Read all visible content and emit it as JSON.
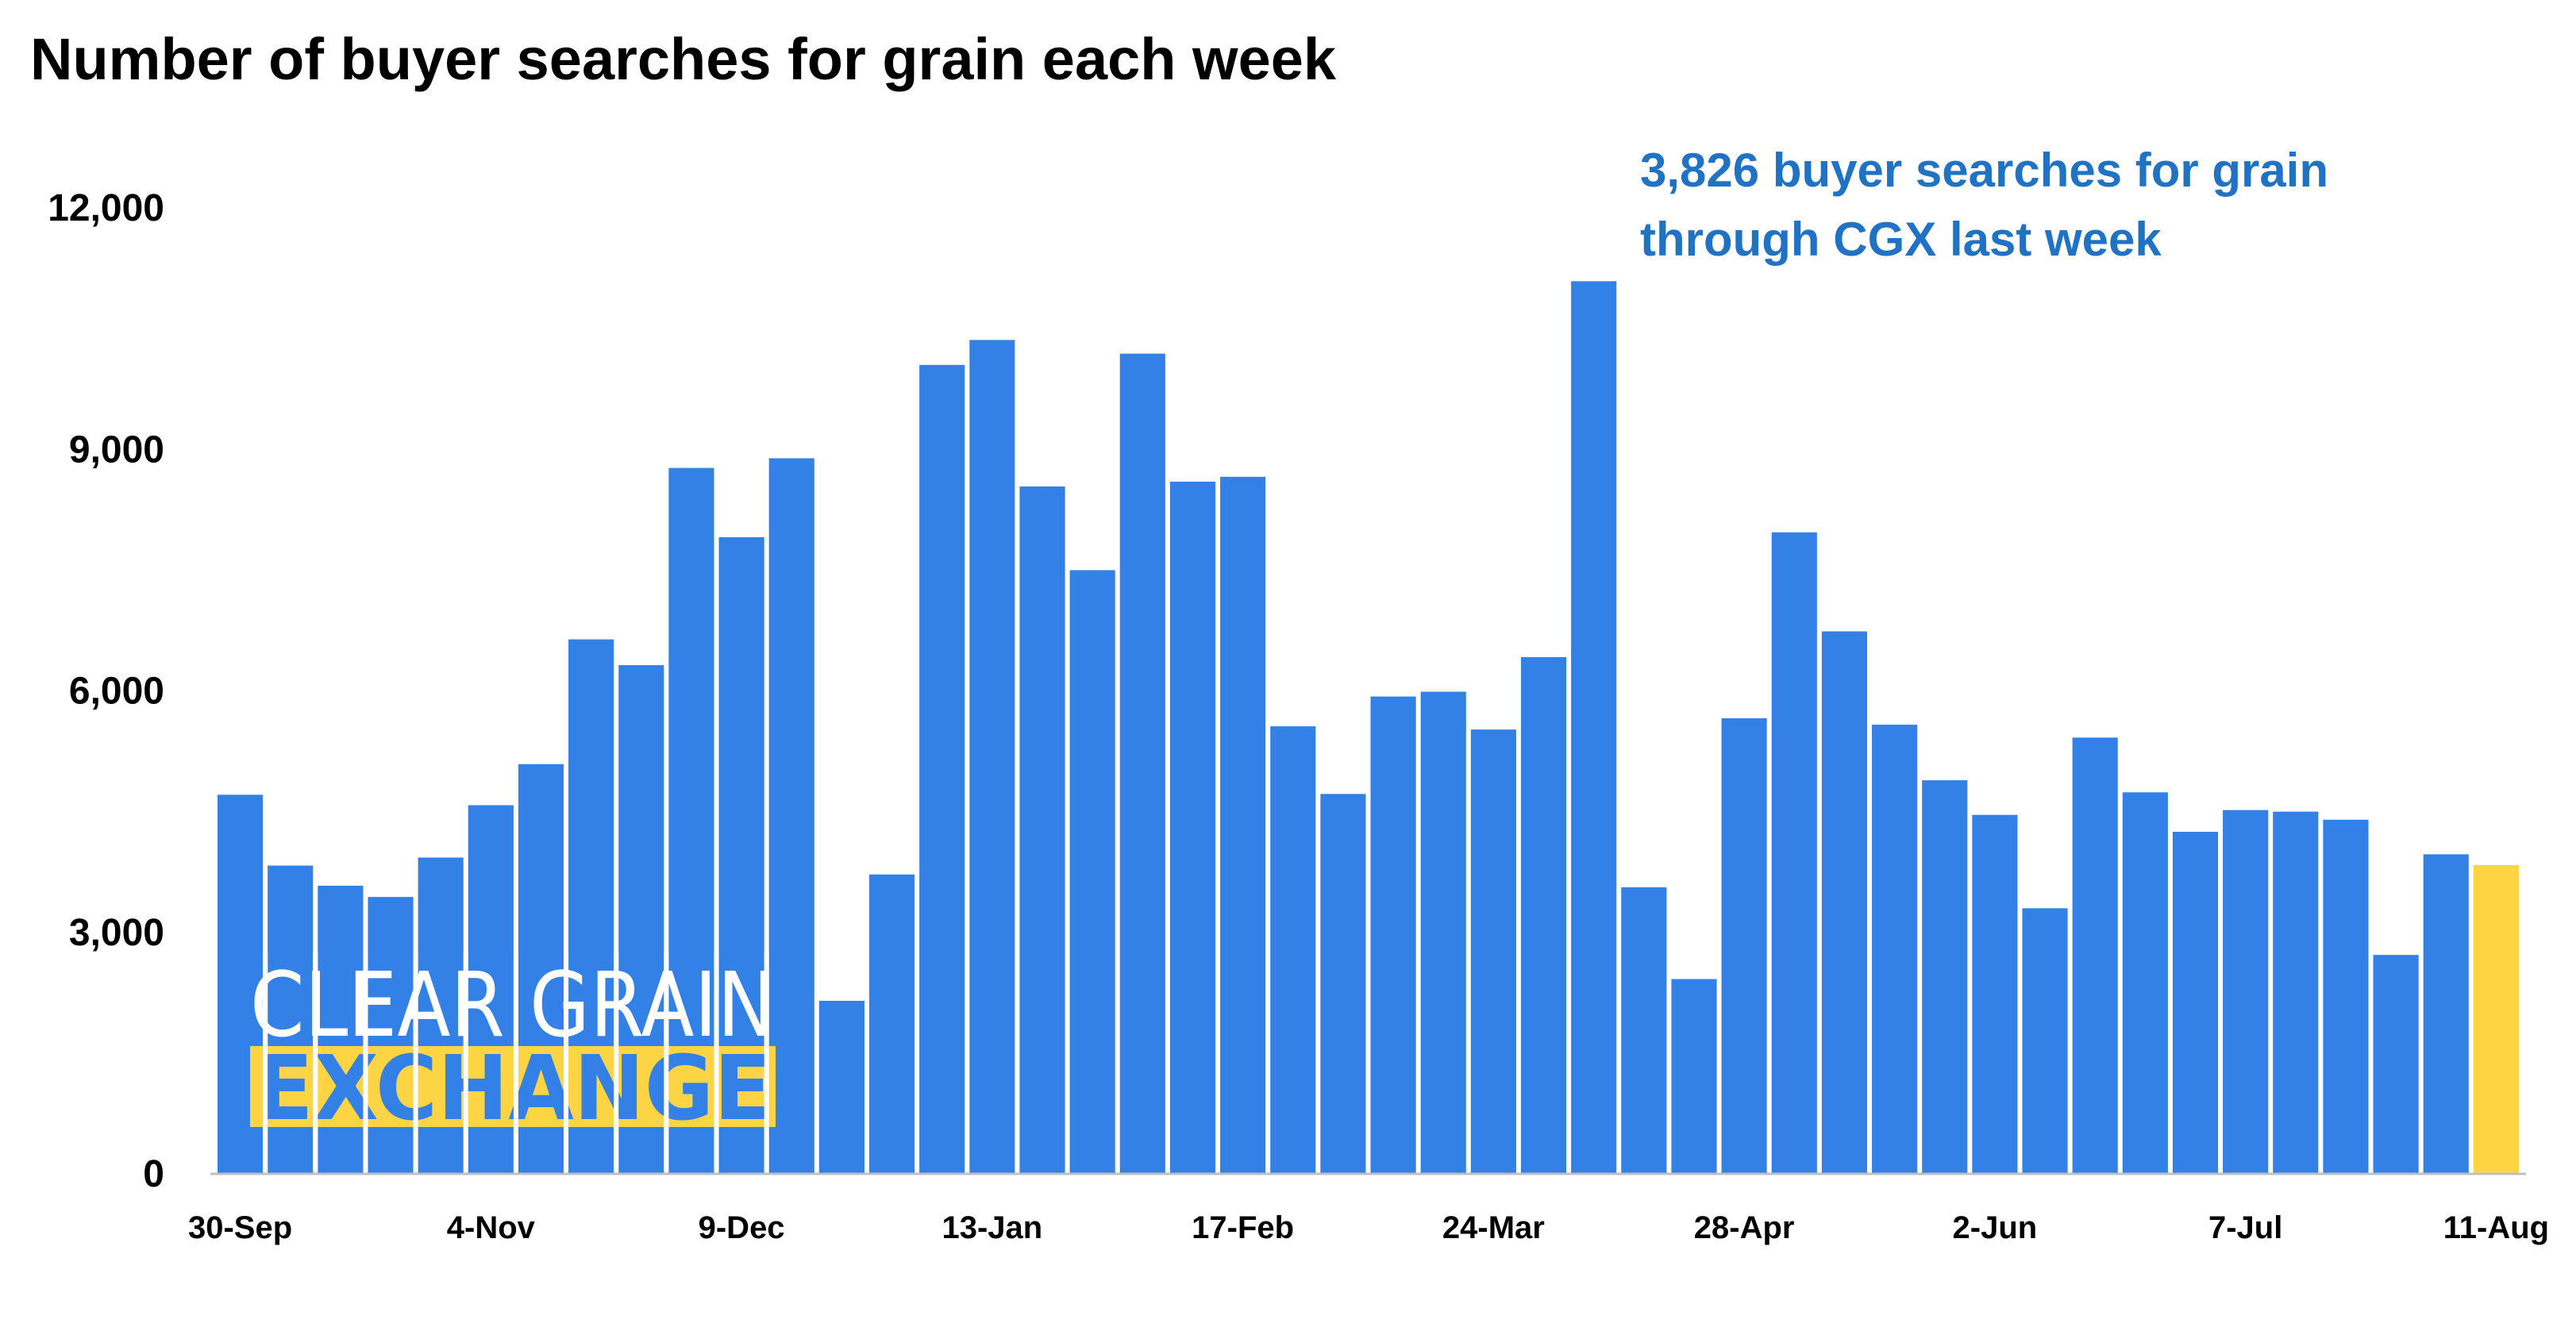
{
  "chart_data": {
    "type": "bar",
    "title": "Number of buyer searches for grain each week",
    "xlabel": "",
    "ylabel": "",
    "ylim": [
      0,
      12000
    ],
    "yticks": [
      0,
      3000,
      6000,
      9000,
      12000
    ],
    "ytick_labels": [
      "0",
      "3,000",
      "6,000",
      "9,000",
      "12,000"
    ],
    "grid": false,
    "x_tick_labels": [
      {
        "index": 0,
        "label": "30-Sep"
      },
      {
        "index": 5,
        "label": "4-Nov"
      },
      {
        "index": 10,
        "label": "9-Dec"
      },
      {
        "index": 15,
        "label": "13-Jan"
      },
      {
        "index": 20,
        "label": "17-Feb"
      },
      {
        "index": 25,
        "label": "24-Mar"
      },
      {
        "index": 30,
        "label": "28-Apr"
      },
      {
        "index": 35,
        "label": "2-Jun"
      },
      {
        "index": 40,
        "label": "7-Jul"
      },
      {
        "index": 45,
        "label": "11-Aug"
      }
    ],
    "values": [
      4700,
      3820,
      3570,
      3430,
      3920,
      4570,
      5080,
      6630,
      6310,
      8760,
      7900,
      8880,
      2140,
      3710,
      10040,
      10350,
      8530,
      7490,
      10180,
      8590,
      8650,
      5550,
      4710,
      5920,
      5980,
      5510,
      6410,
      11080,
      3550,
      2410,
      5650,
      7960,
      6730,
      5570,
      4880,
      4450,
      3290,
      5410,
      4730,
      4240,
      4510,
      4490,
      4390,
      2710,
      3960,
      3826
    ],
    "highlight_index": 45,
    "annotation": [
      "3,826 buyer searches for grain",
      "through CGX last week"
    ]
  },
  "colors": {
    "bar": "#3381e6",
    "highlight": "#fcd444",
    "annotation": "#1f72c4"
  },
  "logo": {
    "line1": "CLEAR GRAIN",
    "line2": "EXCHANGE"
  }
}
